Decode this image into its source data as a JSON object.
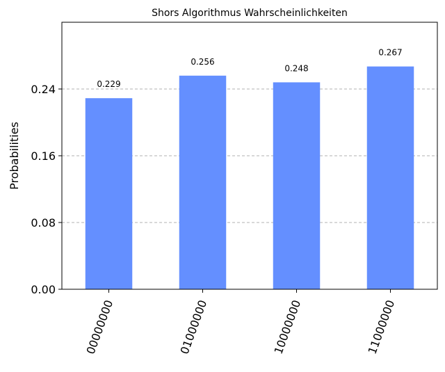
{
  "chart_data": {
    "type": "bar",
    "title": "Shors Algorithmus Wahrscheinlichkeiten",
    "xlabel": "",
    "ylabel": "Probabilities",
    "categories": [
      "00000000",
      "01000000",
      "10000000",
      "11000000"
    ],
    "values": [
      0.229,
      0.256,
      0.248,
      0.267
    ],
    "value_labels": [
      "0.229",
      "0.256",
      "0.248",
      "0.267"
    ],
    "ylim": [
      0,
      0.32
    ],
    "yticks": [
      0.0,
      0.08,
      0.16,
      0.24
    ],
    "ytick_labels": [
      "0.00",
      "0.08",
      "0.16",
      "0.24"
    ],
    "grid": "y-dashed",
    "bar_color": "#648fff",
    "xtick_rotation": -70
  }
}
